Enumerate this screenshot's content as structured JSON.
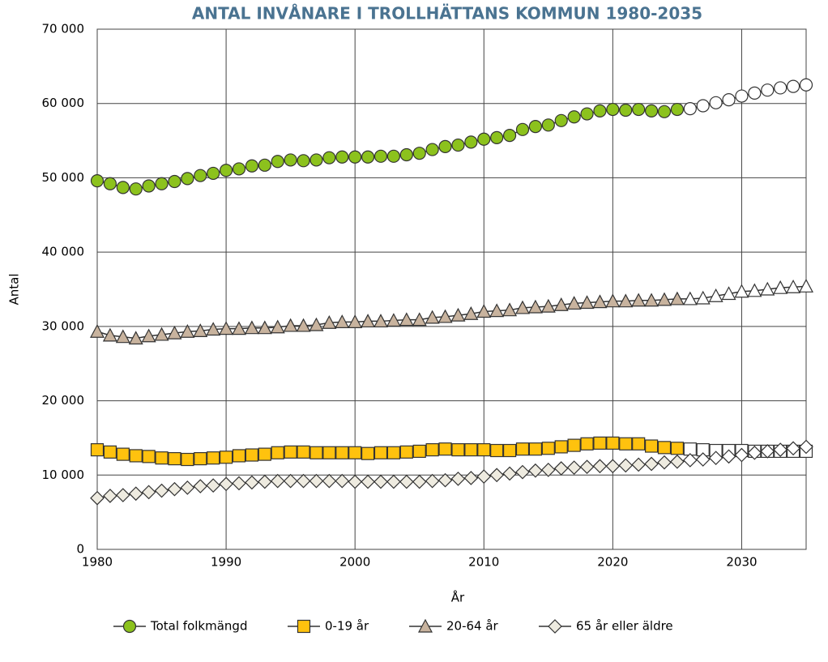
{
  "chart_data": {
    "type": "line",
    "title": "ANTAL INVÅNARE I TROLLHÄTTANS KOMMUN 1980-2035",
    "x_label": "År",
    "y_label": "Antal",
    "x": [
      1980,
      1981,
      1982,
      1983,
      1984,
      1985,
      1986,
      1987,
      1988,
      1989,
      1990,
      1991,
      1992,
      1993,
      1994,
      1995,
      1996,
      1997,
      1998,
      1999,
      2000,
      2001,
      2002,
      2003,
      2004,
      2005,
      2006,
      2007,
      2008,
      2009,
      2010,
      2011,
      2012,
      2013,
      2014,
      2015,
      2016,
      2017,
      2018,
      2019,
      2020,
      2021,
      2022,
      2023,
      2024,
      2025,
      2026,
      2027,
      2028,
      2029,
      2030,
      2031,
      2032,
      2033,
      2034,
      2035
    ],
    "xlim": [
      1980,
      2035
    ],
    "xticks": [
      1980,
      1990,
      2000,
      2010,
      2020,
      2030
    ],
    "ylim": [
      0,
      70000
    ],
    "yticks": [
      0,
      {
        "value": 10000,
        "label": "10 000"
      },
      {
        "value": 20000,
        "label": "20 000"
      },
      {
        "value": 30000,
        "label": "30 000"
      },
      {
        "value": 40000,
        "label": "40 000"
      },
      {
        "value": 50000,
        "label": "50 000"
      },
      {
        "value": 60000,
        "label": "60 000"
      },
      {
        "value": 70000,
        "label": "70 000"
      }
    ],
    "grid": true,
    "projection_start": 2026,
    "projection_fill": "#ffffff",
    "legend": "bottom",
    "series": [
      {
        "name": "Total folkmängd",
        "color": "#8cc21d",
        "marker": "circle",
        "values": [
          49600,
          49200,
          48700,
          48500,
          48900,
          49200,
          49500,
          49900,
          50300,
          50600,
          51000,
          51200,
          51600,
          51700,
          52200,
          52400,
          52300,
          52400,
          52700,
          52800,
          52800,
          52800,
          52900,
          52900,
          53100,
          53300,
          53800,
          54200,
          54400,
          54800,
          55200,
          55400,
          55700,
          56500,
          56900,
          57100,
          57700,
          58200,
          58600,
          59000,
          59200,
          59100,
          59200,
          59000,
          58900,
          59200,
          59300,
          59700,
          60100,
          60500,
          61000,
          61400,
          61800,
          62100,
          62300,
          62500
        ]
      },
      {
        "name": "0-19 år",
        "color": "#ffc20e",
        "marker": "square",
        "values": [
          13400,
          13100,
          12800,
          12600,
          12500,
          12300,
          12200,
          12100,
          12200,
          12300,
          12400,
          12600,
          12700,
          12800,
          13000,
          13100,
          13100,
          13000,
          13000,
          13000,
          13000,
          12900,
          13000,
          13000,
          13100,
          13200,
          13400,
          13500,
          13400,
          13400,
          13400,
          13300,
          13300,
          13500,
          13500,
          13600,
          13800,
          14000,
          14200,
          14300,
          14300,
          14200,
          14200,
          13900,
          13700,
          13600,
          13500,
          13400,
          13300,
          13300,
          13300,
          13200,
          13200,
          13200,
          13200,
          13200
        ]
      },
      {
        "name": "20-64 år",
        "color": "#c8b39e",
        "marker": "triangle",
        "values": [
          29300,
          28800,
          28600,
          28400,
          28700,
          28900,
          29100,
          29300,
          29400,
          29600,
          29700,
          29700,
          29800,
          29800,
          29900,
          30100,
          30100,
          30200,
          30500,
          30600,
          30600,
          30700,
          30700,
          30800,
          30900,
          30900,
          31200,
          31300,
          31500,
          31700,
          32000,
          32100,
          32200,
          32500,
          32600,
          32700,
          32900,
          33100,
          33200,
          33300,
          33400,
          33400,
          33500,
          33500,
          33600,
          33700,
          33700,
          33800,
          34100,
          34400,
          34700,
          34800,
          35000,
          35200,
          35300,
          35400
        ]
      },
      {
        "name": "65 år eller äldre",
        "color": "#eeebe0",
        "marker": "diamond",
        "values": [
          6900,
          7200,
          7300,
          7500,
          7700,
          7900,
          8100,
          8300,
          8500,
          8600,
          8800,
          8900,
          9000,
          9100,
          9200,
          9200,
          9200,
          9200,
          9200,
          9200,
          9100,
          9100,
          9100,
          9100,
          9100,
          9100,
          9200,
          9300,
          9500,
          9600,
          9800,
          10000,
          10200,
          10400,
          10600,
          10700,
          10900,
          11000,
          11100,
          11200,
          11200,
          11300,
          11400,
          11500,
          11700,
          11800,
          12000,
          12100,
          12300,
          12500,
          12700,
          13000,
          13200,
          13400,
          13600,
          13800
        ]
      }
    ]
  }
}
